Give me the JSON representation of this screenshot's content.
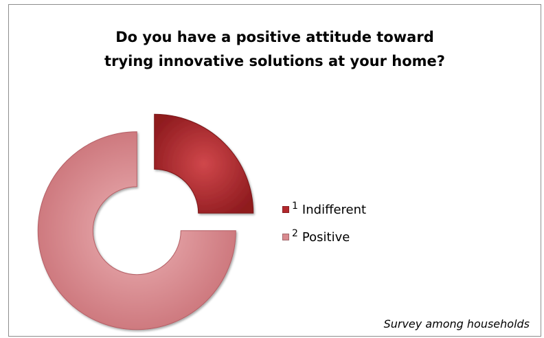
{
  "chart_data": {
    "type": "pie",
    "style": "exploded-donut",
    "title_lines": [
      "Do you have a positive attitude toward",
      "trying innovative solutions at your home?"
    ],
    "categories": [
      "Indifferent",
      "Positive"
    ],
    "series": [
      {
        "values": [
          25,
          75
        ]
      }
    ],
    "legend_numbers": [
      "1",
      "2"
    ],
    "colors": [
      "#b3282c",
      "#d98a8f"
    ],
    "legend": "right",
    "footnote": "Survey among households"
  }
}
